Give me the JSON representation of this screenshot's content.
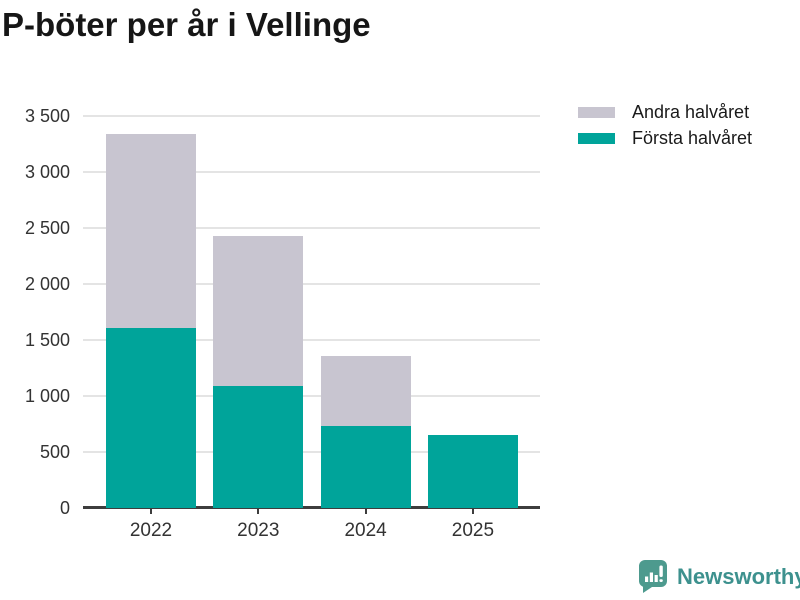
{
  "title": "P-böter per år i Vellinge",
  "legend": {
    "items": [
      {
        "id": "andra-halvaret",
        "label": "Andra halvåret",
        "color": "#c8c5d0"
      },
      {
        "id": "forsta-halvaret",
        "label": "Första halvåret",
        "color": "#00a49a"
      }
    ]
  },
  "chart_data": {
    "type": "bar",
    "stacked": true,
    "title": "P-böter per år i Vellinge",
    "categories": [
      "2022",
      "2023",
      "2024",
      "2025"
    ],
    "series": [
      {
        "name": "Första halvåret",
        "color": "#00a49a",
        "values": [
          1610,
          1090,
          730,
          650
        ]
      },
      {
        "name": "Andra halvåret",
        "color": "#c8c5d0",
        "values": [
          1730,
          1340,
          630,
          0
        ]
      }
    ],
    "stacked_totals": [
      3340,
      2430,
      1360,
      650
    ],
    "xlabel": "",
    "ylabel": "",
    "ylim": [
      0,
      3500
    ],
    "ytick_interval": 500,
    "ytick_labels": [
      "0",
      "500",
      "1 000",
      "1 500",
      "2 000",
      "2 500",
      "3 000",
      "3 500"
    ],
    "grid": true,
    "legend_position": "top-right"
  },
  "branding": {
    "logo_text": "Newsworthy",
    "logo_icon": "bar-chart-speech-bubble-icon",
    "icon_color": "#4d9a8e",
    "text_color": "#3d918e"
  },
  "colors": {
    "background": "#ffffff",
    "gridline": "#e4e4e4",
    "axis": "#3d3d3d",
    "axis_label": "#333333",
    "title": "#161616"
  }
}
